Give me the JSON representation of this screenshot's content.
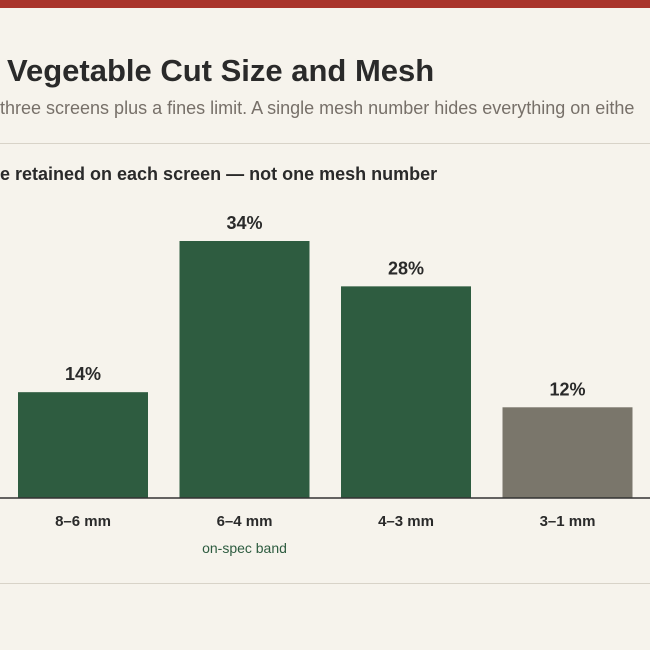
{
  "colors": {
    "accent_bar": "#a9342b",
    "on_spec": "#2e5c40",
    "fines": "#7a766b",
    "axis": "#333333"
  },
  "header": {
    "title": "Vegetable Cut Size and Mesh",
    "subtitle": "three screens plus a fines limit. A single mesh number hides everything on eithe"
  },
  "chart_data": {
    "type": "bar",
    "title": "e retained on each screen — not one mesh number",
    "categories": [
      "8–6 mm",
      "6–4 mm",
      "4–3 mm",
      "3–1 mm"
    ],
    "values": [
      14,
      34,
      28,
      12
    ],
    "value_labels": [
      "14%",
      "34%",
      "28%",
      "12%"
    ],
    "bar_colors": [
      "#2e5c40",
      "#2e5c40",
      "#2e5c40",
      "#7a766b"
    ],
    "annotations": [
      {
        "category": "6–4 mm",
        "text": "on-spec band",
        "color": "#2e5c40"
      }
    ],
    "ylim": [
      0,
      34
    ],
    "xlabel": "",
    "ylabel": "",
    "grid": false,
    "legend": "none"
  }
}
